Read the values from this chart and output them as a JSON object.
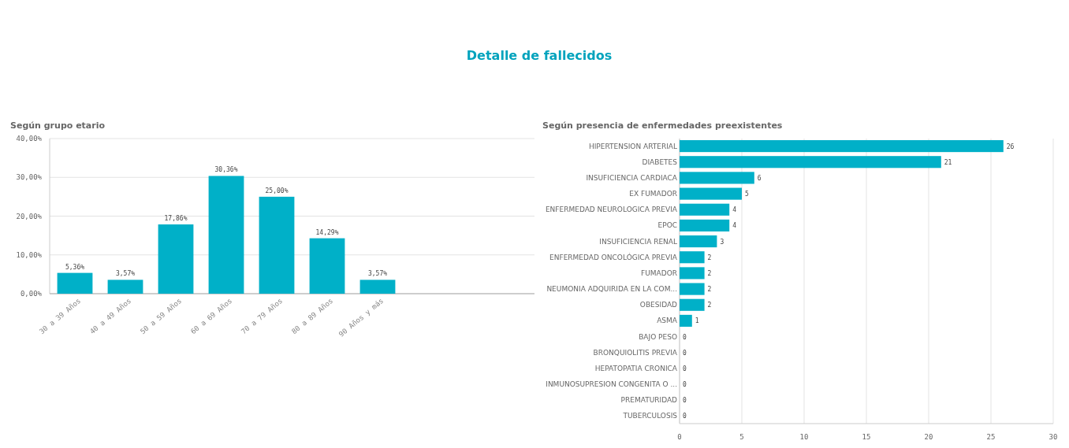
{
  "chart_data": [
    {
      "type": "bar",
      "title": "Según grupo etario",
      "categories": [
        "30 a 39 Años",
        "40 a 49 Años",
        "50 a 59 Años",
        "60 a 69 Años",
        "70 a 79 Años",
        "80 a 89 Años",
        "90 Años y más"
      ],
      "values": [
        5.36,
        3.57,
        17.86,
        30.36,
        25.0,
        14.29,
        3.57
      ],
      "value_labels": [
        "5,36%",
        "3,57%",
        "17,86%",
        "30,36%",
        "25,00%",
        "14,29%",
        "3,57%"
      ],
      "color": "#00b0c8",
      "ylim": [
        0,
        40
      ],
      "yticks": [
        {
          "value": 0,
          "label": "0,00%"
        },
        {
          "value": 10,
          "label": "10,00%"
        },
        {
          "value": 20,
          "label": "20,00%"
        },
        {
          "value": 30,
          "label": "30,00%"
        },
        {
          "value": 40,
          "label": "40,00%"
        }
      ],
      "grid": "y"
    },
    {
      "type": "bar",
      "orientation": "horizontal",
      "title": "Detalle de fallecidos",
      "subtitle": "Según presencia de enfermedades preexistentes",
      "categories": [
        "HIPERTENSION ARTERIAL",
        "DIABETES",
        "INSUFICIENCIA CARDIACA",
        "EX FUMADOR",
        "ENFERMEDAD NEUROLOGICA PREVIA",
        "EPOC",
        "INSUFICIENCIA RENAL",
        "ENFERMEDAD ONCOLÓGICA PREVIA",
        "FUMADOR",
        "NEUMONIA ADQUIRIDA EN LA COM...",
        "OBESIDAD",
        "ASMA",
        "BAJO PESO",
        "BRONQUIOLITIS PREVIA",
        "HEPATOPATIA CRONICA",
        "INMUNOSUPRESION CONGENITA O ...",
        "PREMATURIDAD",
        "TUBERCULOSIS"
      ],
      "values": [
        26,
        21,
        6,
        5,
        4,
        4,
        3,
        2,
        2,
        2,
        2,
        1,
        0,
        0,
        0,
        0,
        0,
        0
      ],
      "data_labels": true,
      "color": "#00b0c8",
      "xlim": [
        0,
        30
      ],
      "xticks": [
        0,
        5,
        10,
        15,
        20,
        25,
        30
      ],
      "grid": "x"
    }
  ]
}
